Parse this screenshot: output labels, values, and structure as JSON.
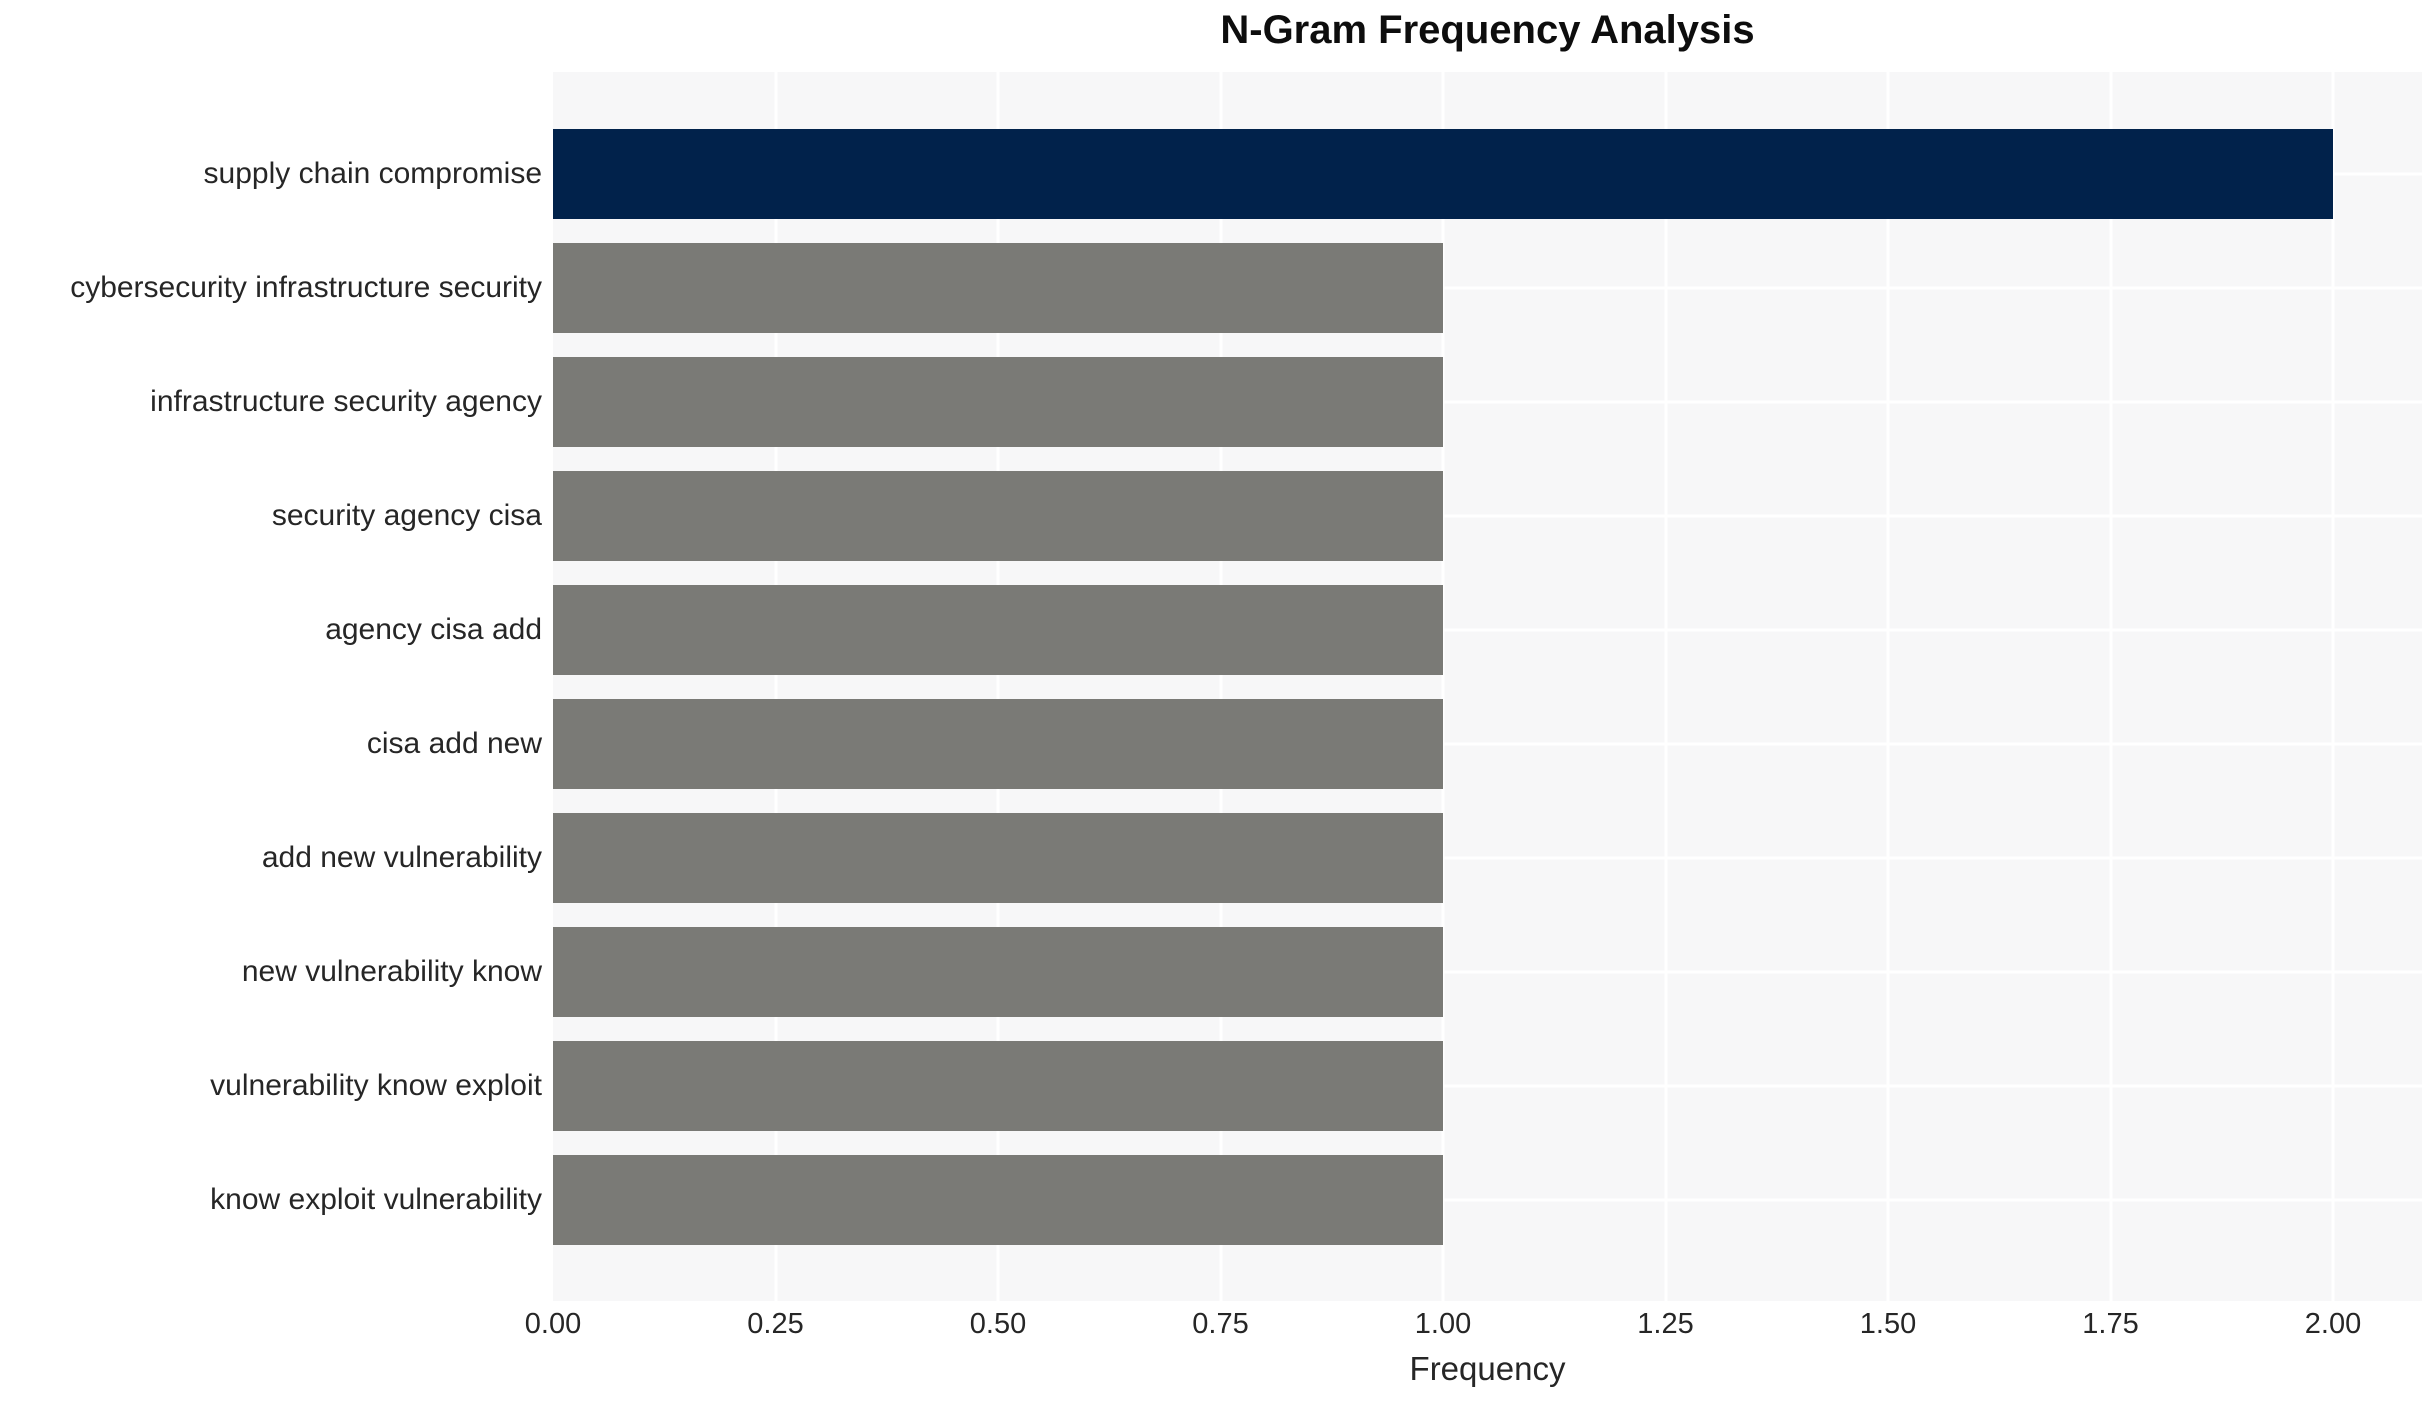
{
  "title": "N-Gram Frequency Analysis",
  "chart_data": {
    "type": "bar",
    "orientation": "horizontal",
    "title": "N-Gram Frequency Analysis",
    "xlabel": "Frequency",
    "ylabel": "",
    "categories": [
      "supply chain compromise",
      "cybersecurity infrastructure security",
      "infrastructure security agency",
      "security agency cisa",
      "agency cisa add",
      "cisa add new",
      "add new vulnerability",
      "new vulnerability know",
      "vulnerability know exploit",
      "know exploit vulnerability"
    ],
    "values": [
      2,
      1,
      1,
      1,
      1,
      1,
      1,
      1,
      1,
      1
    ],
    "bar_colors": [
      "#01224B",
      "#7A7A76",
      "#7A7A76",
      "#7A7A76",
      "#7A7A76",
      "#7A7A76",
      "#7A7A76",
      "#7A7A76",
      "#7A7A76",
      "#7A7A76"
    ],
    "xlim": [
      0,
      2.1
    ],
    "xtick_values": [
      0,
      0.25,
      0.5,
      0.75,
      1.0,
      1.25,
      1.5,
      1.75,
      2.0
    ],
    "xtick_labels": [
      "0.00",
      "0.25",
      "0.50",
      "0.75",
      "1.00",
      "1.25",
      "1.50",
      "1.75",
      "2.00"
    ],
    "grid": "on",
    "legend": "none"
  },
  "styles": {
    "plot_background": "#F7F7F8",
    "grid_color": "#FFFFFF",
    "highlight_bar_color": "#01224B",
    "default_bar_color": "#7A7A76",
    "text_color": "#262626",
    "title_color": "#0D0D0D",
    "page_background": "#FFFFFF"
  }
}
